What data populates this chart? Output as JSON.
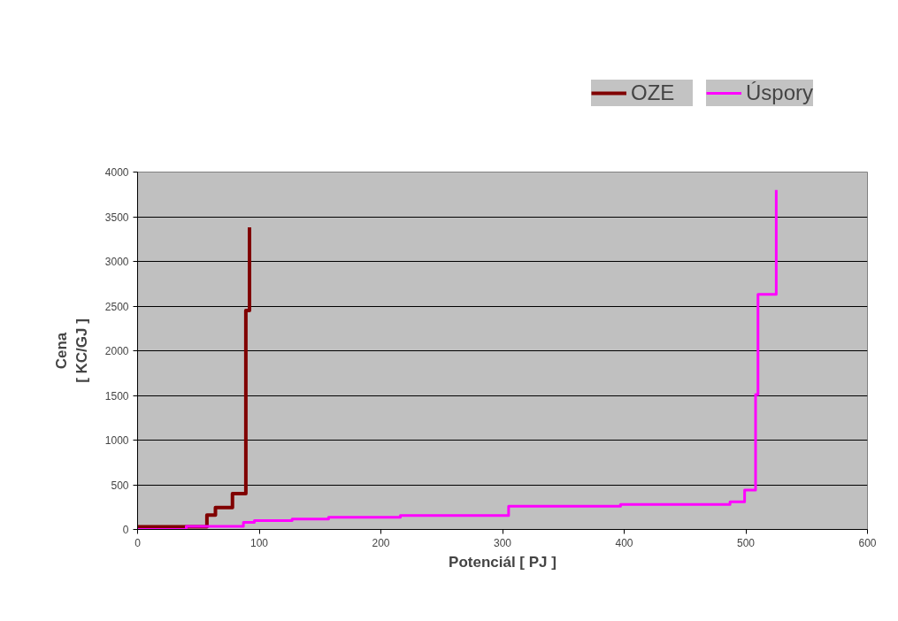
{
  "chart_data": {
    "type": "line",
    "xlabel": "Potenciál [ PJ ]",
    "ylabel": "Cena\n[ KC/GJ ]",
    "xlim": [
      0,
      600
    ],
    "xticks": [
      0,
      100,
      200,
      300,
      400,
      500,
      600
    ],
    "ylim": [
      0,
      4000
    ],
    "yticks": [
      0,
      500,
      1000,
      1500,
      2000,
      2500,
      3000,
      3500,
      4000
    ],
    "grid": "y",
    "legend": "top right",
    "line_style": "solid",
    "marker": "none",
    "series": [
      {
        "name": "OZE",
        "color": "#800000",
        "x": [
          0,
          57,
          57,
          64,
          64,
          78,
          78,
          89,
          89,
          92,
          92
        ],
        "values": [
          30,
          30,
          160,
          160,
          245,
          245,
          400,
          400,
          2450,
          2450,
          3380
        ]
      },
      {
        "name": "Úspory",
        "color": "#ff00ff",
        "x": [
          0,
          40,
          40,
          87,
          87,
          96,
          96,
          127,
          127,
          157,
          157,
          216,
          216,
          305,
          305,
          397,
          397,
          487,
          487,
          499,
          499,
          508,
          508,
          510,
          510,
          525,
          525
        ],
        "values": [
          0,
          0,
          35,
          35,
          80,
          80,
          100,
          100,
          117,
          117,
          135,
          135,
          155,
          155,
          260,
          260,
          280,
          280,
          310,
          310,
          440,
          440,
          1510,
          1510,
          2630,
          2630,
          3800
        ]
      }
    ]
  }
}
